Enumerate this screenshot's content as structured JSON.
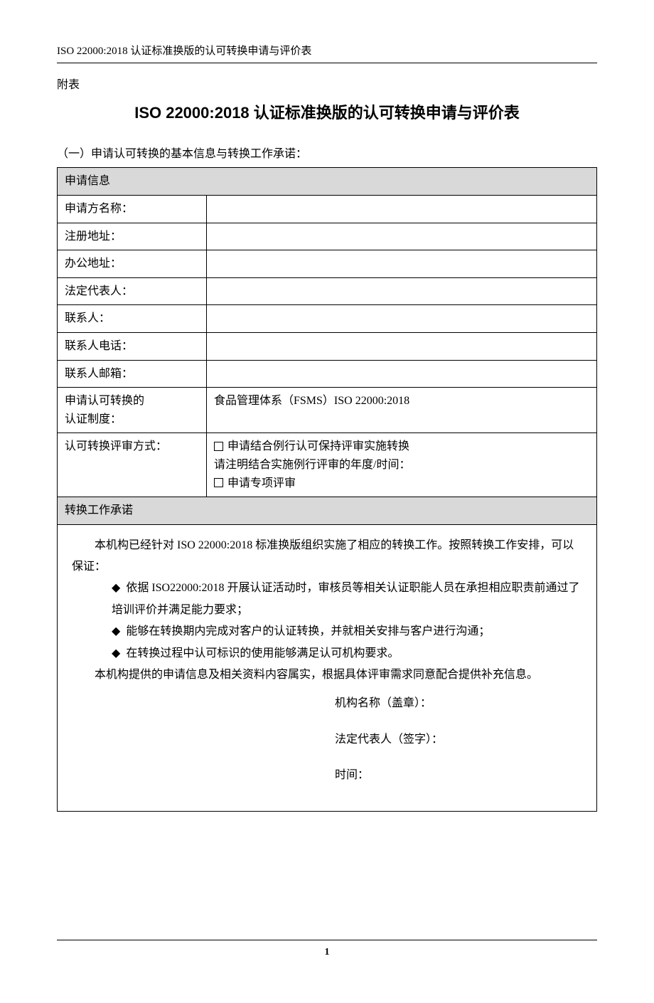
{
  "header": "ISO 22000:2018 认证标准换版的认可转换申请与评价表",
  "attachment_label": "附表",
  "main_title": "ISO 22000:2018 认证标准换版的认可转换申请与评价表",
  "section1_label": "（一）申请认可转换的基本信息与转换工作承诺：",
  "tbl": {
    "info_header": "申请信息",
    "rows": {
      "applicant_name": {
        "label": "申请方名称：",
        "value": ""
      },
      "reg_addr": {
        "label": "注册地址：",
        "value": ""
      },
      "office_addr": {
        "label": "办公地址：",
        "value": ""
      },
      "legal_rep": {
        "label": "法定代表人：",
        "value": ""
      },
      "contact": {
        "label": "联系人：",
        "value": ""
      },
      "phone": {
        "label": "联系人电话：",
        "value": ""
      },
      "email": {
        "label": "联系人邮箱：",
        "value": ""
      },
      "system_label_l1": "申请认可转换的",
      "system_label_l2": "认证制度：",
      "system_value": "食品管理体系（FSMS）ISO 22000:2018",
      "method_label": "认可转换评审方式：",
      "method_opt1": "申请结合例行认可保持评审实施转换",
      "method_note": "请注明结合实施例行评审的年度/时间：",
      "method_opt2": "申请专项评审"
    },
    "commit_header": "转换工作承诺",
    "commit": {
      "p1": "本机构已经针对 ISO 22000:2018 标准换版组织实施了相应的转换工作。按照转换工作安排，可以保证：",
      "b1": "依据 ISO22000:2018 开展认证活动时，审核员等相关认证职能人员在承担相应职责前通过了培训评价并满足能力要求；",
      "b2": "能够在转换期内完成对客户的认证转换，并就相关安排与客户进行沟通；",
      "b3": "在转换过程中认可标识的使用能够满足认可机构要求。",
      "p2": "本机构提供的申请信息及相关资料内容属实，根据具体评审需求同意配合提供补充信息。",
      "sign_org": "机构名称（盖章）：",
      "sign_rep": "法定代表人（签字）：",
      "sign_date": "时间："
    }
  },
  "page_number": "1",
  "colors": {
    "section_bg": "#d9d9d9",
    "text": "#000000",
    "bg": "#ffffff"
  }
}
